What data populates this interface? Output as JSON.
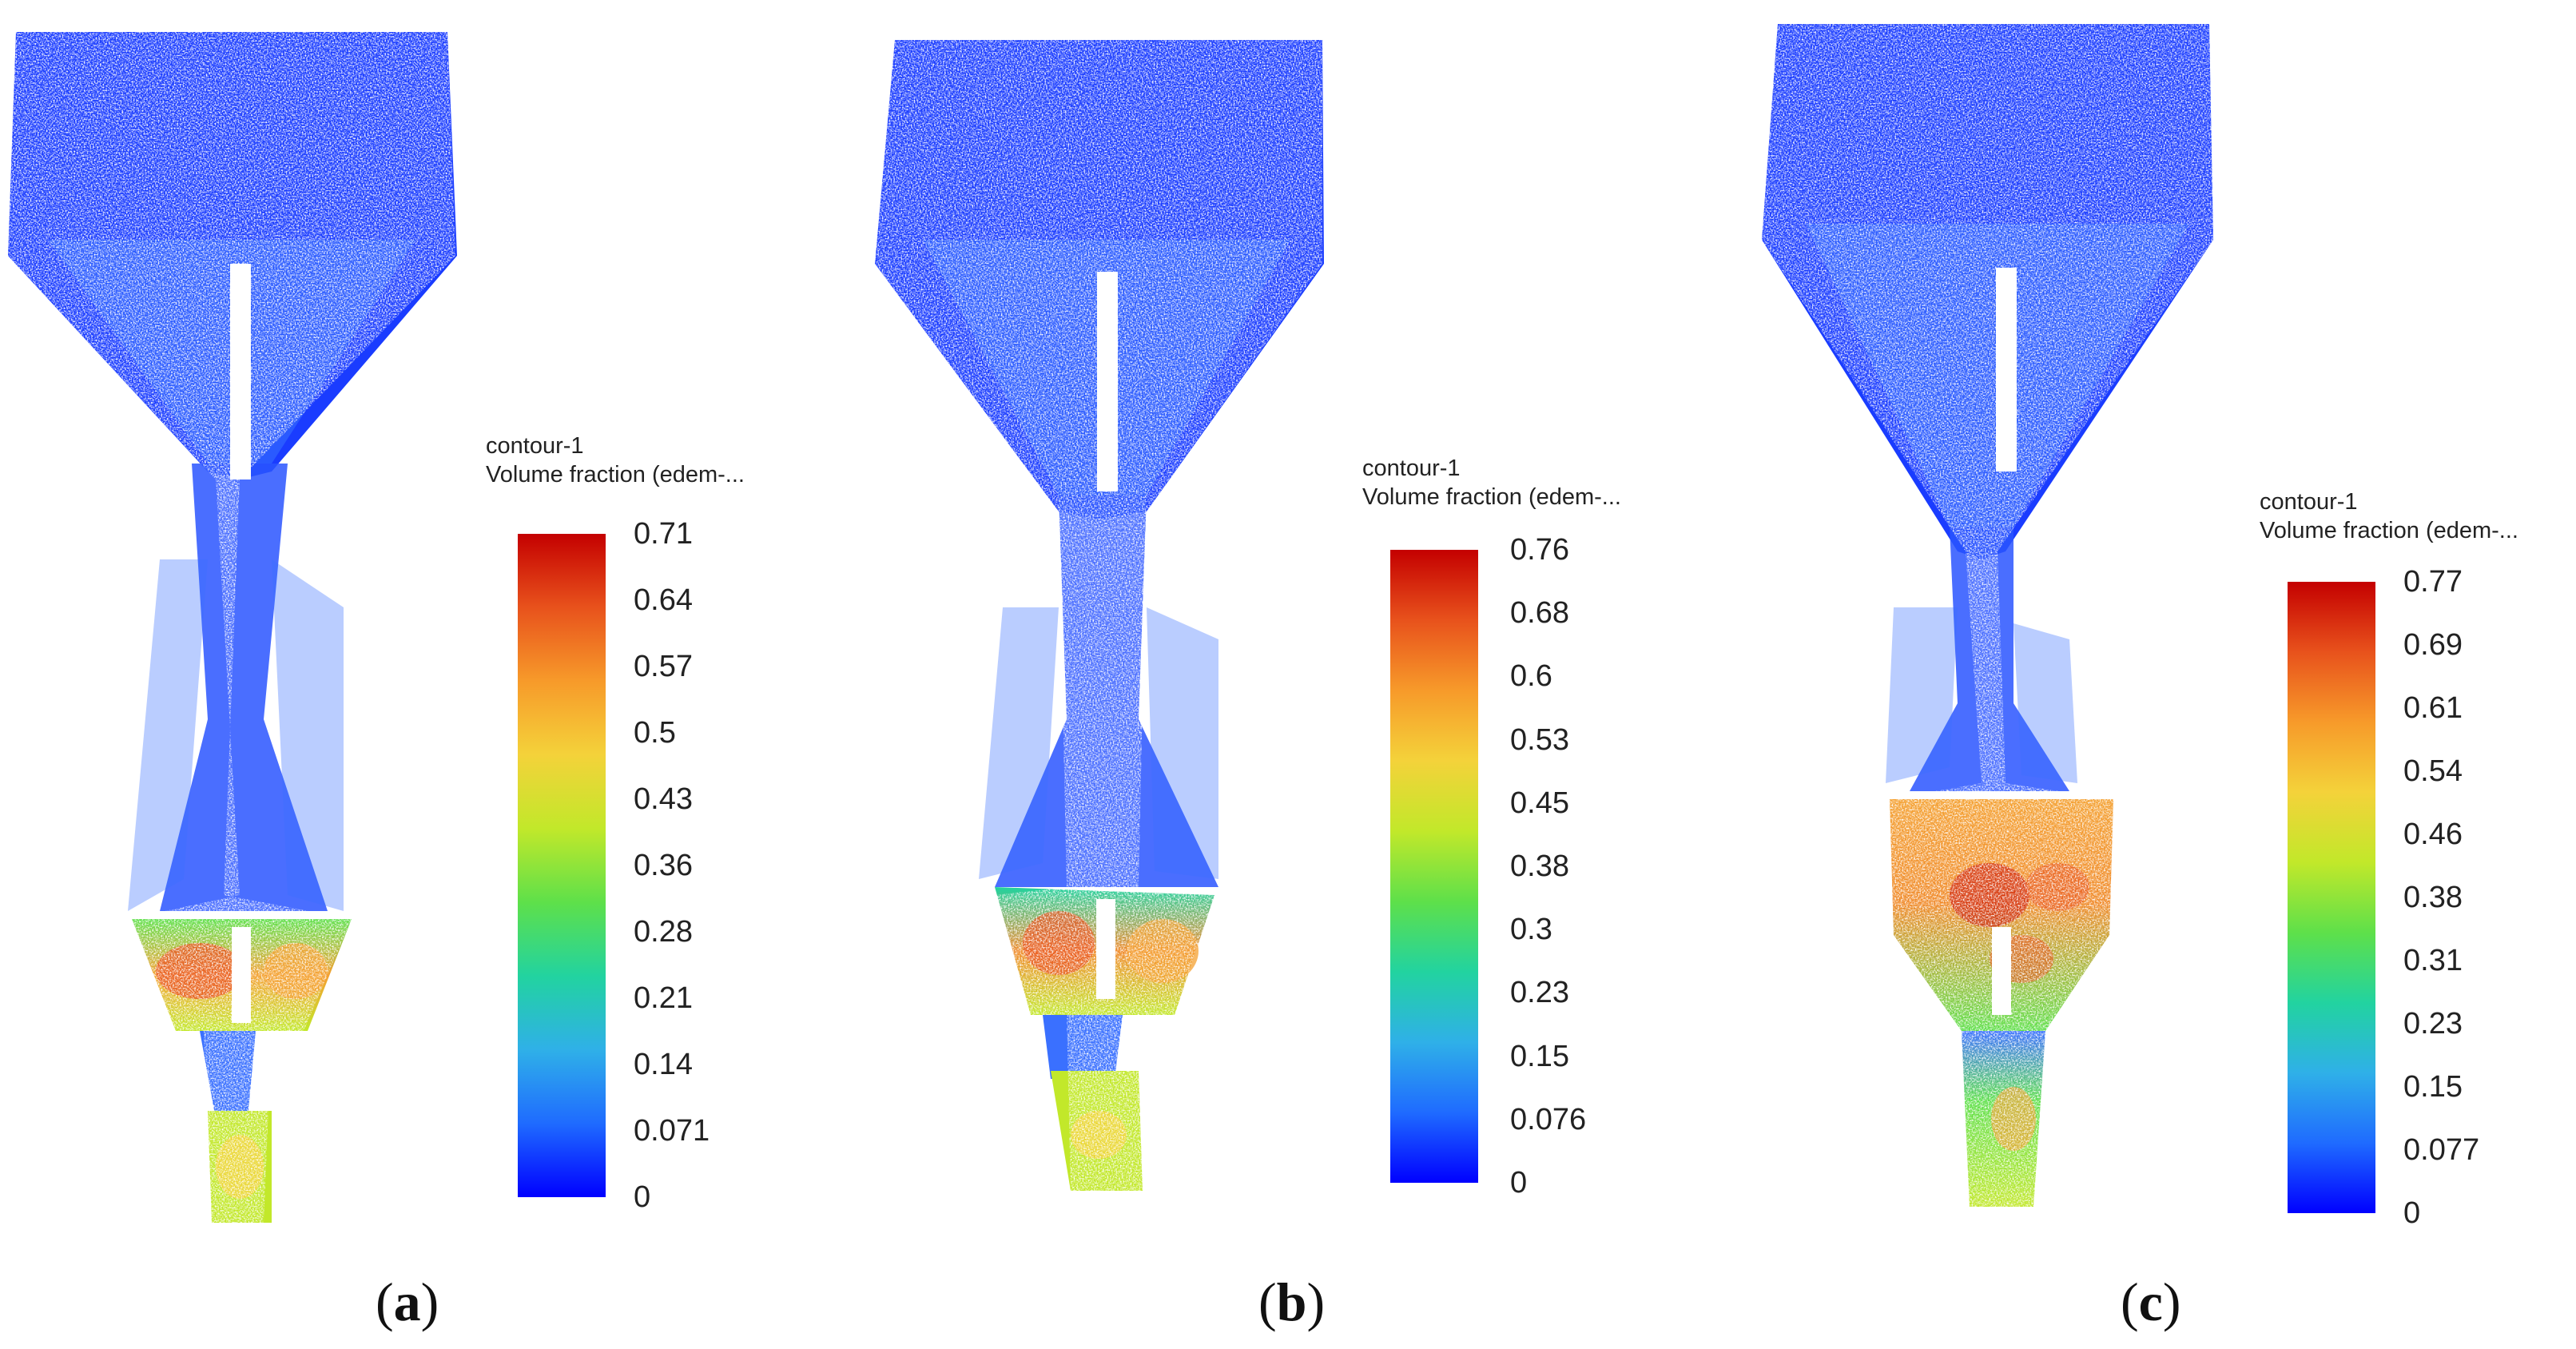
{
  "panels": [
    {
      "label_open": "(",
      "label_letter": "a",
      "label_close": ")",
      "legend_title": "contour-1",
      "legend_subtitle": "Volume fraction (edem-...",
      "ticks": [
        "0.71",
        "0.64",
        "0.57",
        "0.5",
        "0.43",
        "0.36",
        "0.28",
        "0.21",
        "0.14",
        "0.071",
        "0"
      ],
      "range": [
        0,
        0.71
      ]
    },
    {
      "label_open": "(",
      "label_letter": "b",
      "label_close": ")",
      "legend_title": "contour-1",
      "legend_subtitle": "Volume fraction (edem-...",
      "ticks": [
        "0.76",
        "0.68",
        "0.6",
        "0.53",
        "0.45",
        "0.38",
        "0.3",
        "0.23",
        "0.15",
        "0.076",
        "0"
      ],
      "range": [
        0,
        0.76
      ]
    },
    {
      "label_open": "(",
      "label_letter": "c",
      "label_close": ")",
      "legend_title": "contour-1",
      "legend_subtitle": "Volume fraction (edem-...",
      "ticks": [
        "0.77",
        "0.69",
        "0.61",
        "0.54",
        "0.46",
        "0.38",
        "0.31",
        "0.23",
        "0.15",
        "0.077",
        "0"
      ],
      "range": [
        0,
        0.77
      ]
    }
  ],
  "colors": {
    "colormap": [
      "#0000ff",
      "#1f6bff",
      "#2fb0e8",
      "#22d3a0",
      "#5ee04a",
      "#c2e82a",
      "#f4d23a",
      "#f79a2a",
      "#e8521c",
      "#c40000"
    ],
    "particle_low": "#1440ff",
    "particle_mid": "#3aa8f0"
  }
}
